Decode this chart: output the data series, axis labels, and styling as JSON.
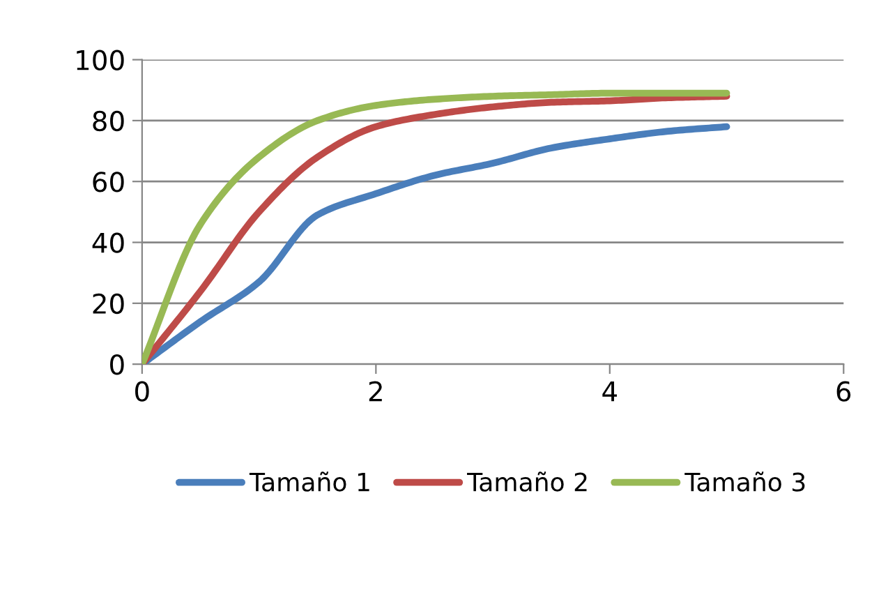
{
  "chart_data": {
    "type": "line",
    "x": [
      0,
      0.5,
      1,
      1.5,
      2,
      2.5,
      3,
      3.5,
      4,
      4.5,
      5
    ],
    "series": [
      {
        "name": "Tamaño 1",
        "color": "#4a7ebb",
        "values": [
          0,
          14,
          27,
          49,
          56,
          62,
          66,
          71,
          74,
          76.5,
          78
        ]
      },
      {
        "name": "Tamaño 2",
        "color": "#be4b48",
        "values": [
          0,
          24,
          50,
          68,
          78,
          82,
          84.5,
          86,
          86.5,
          87.5,
          88
        ]
      },
      {
        "name": "Tamaño 3",
        "color": "#98b954",
        "values": [
          0,
          46,
          68,
          80,
          85,
          87,
          88,
          88.5,
          89,
          89,
          89
        ]
      }
    ],
    "xlim": [
      0,
      6
    ],
    "xticks": [
      0,
      2,
      4,
      6
    ],
    "ylim": [
      0,
      100
    ],
    "yticks": [
      0,
      20,
      40,
      60,
      80,
      100
    ],
    "grid": "y",
    "legend": "bottom",
    "marker": "none",
    "line_style": "solid"
  }
}
